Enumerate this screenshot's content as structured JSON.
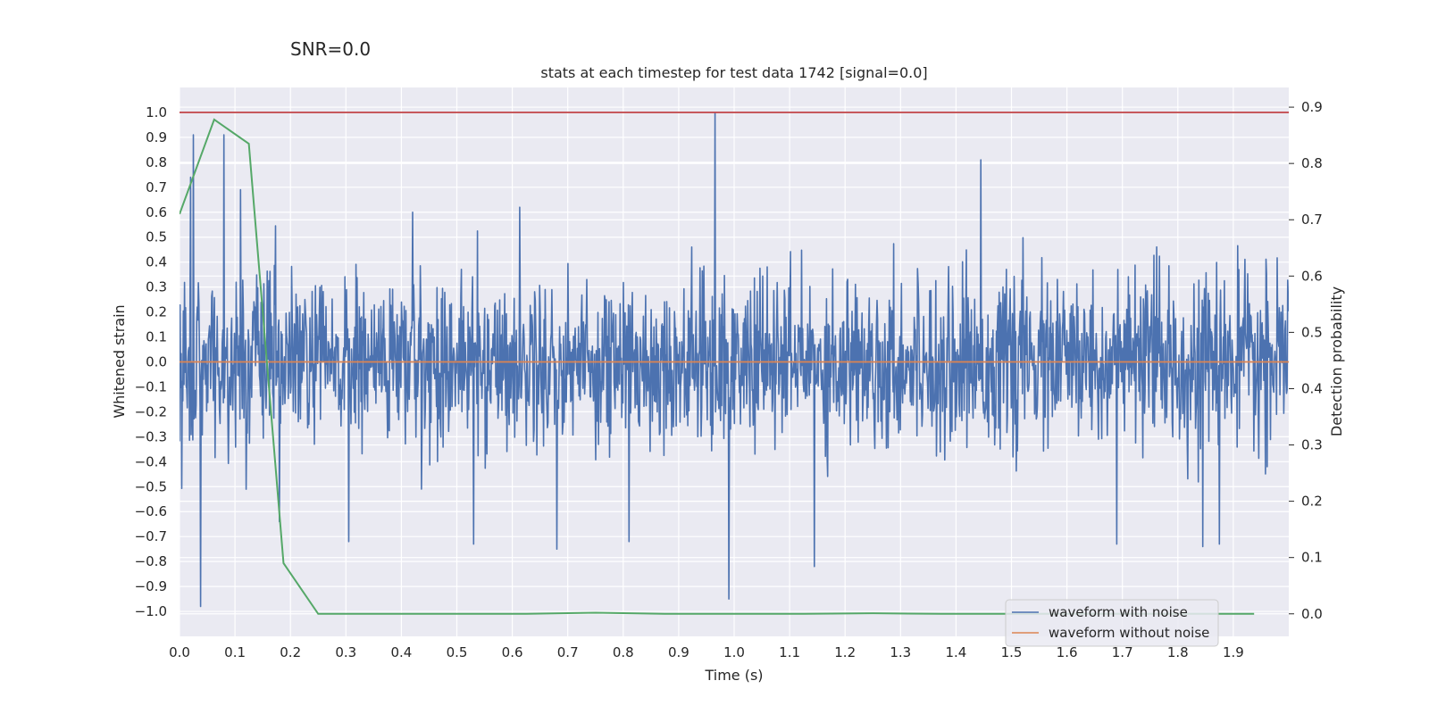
{
  "figure": {
    "suptitle": "SNR=0.0"
  },
  "chart_data": {
    "type": "line",
    "title": "stats at each timestep for test data 1742 [signal=0.0]",
    "xlabel": "Time (s)",
    "ylabel": "Whitened strain",
    "y2label": "Detection probability",
    "xlim": [
      0.0,
      2.0
    ],
    "ylim": [
      -1.1,
      1.1
    ],
    "y2lim": [
      -0.04,
      0.935
    ],
    "x_ticks": [
      "0.0",
      "0.1",
      "0.2",
      "0.3",
      "0.4",
      "0.5",
      "0.6",
      "0.7",
      "0.8",
      "0.9",
      "1.0",
      "1.1",
      "1.2",
      "1.3",
      "1.4",
      "1.5",
      "1.6",
      "1.7",
      "1.8",
      "1.9"
    ],
    "y_ticks": [
      "1.0",
      "0.9",
      "0.8",
      "0.7",
      "0.6",
      "0.5",
      "0.4",
      "0.3",
      "0.2",
      "0.1",
      "0.0",
      "−0.1",
      "−0.2",
      "−0.3",
      "−0.4",
      "−0.5",
      "−0.6",
      "−0.7",
      "−0.8",
      "−0.9",
      "−1.0"
    ],
    "y2_ticks": [
      "0.9",
      "0.8",
      "0.7",
      "0.6",
      "0.5",
      "0.4",
      "0.3",
      "0.2",
      "0.1",
      "0.0"
    ],
    "grid": true,
    "legend_position": "lower-right",
    "threshold_line": {
      "axis": "y",
      "value": 1.0,
      "color": "#c44e52"
    },
    "series": [
      {
        "name": "waveform with noise",
        "axis": "left",
        "color": "#4c72b0",
        "style": "dense-noise",
        "x_range": [
          0.0,
          2.0
        ],
        "sample_count": 2000,
        "typical_amplitude": 0.3,
        "peaks": [
          {
            "x": 0.02,
            "y": 0.74
          },
          {
            "x": 0.025,
            "y": 0.91
          },
          {
            "x": 0.038,
            "y": -0.98
          },
          {
            "x": 0.08,
            "y": 0.91
          },
          {
            "x": 0.11,
            "y": 0.69
          },
          {
            "x": 0.12,
            "y": -0.51
          },
          {
            "x": 0.18,
            "y": -0.64
          },
          {
            "x": 0.305,
            "y": -0.72
          },
          {
            "x": 0.42,
            "y": 0.6
          },
          {
            "x": 0.53,
            "y": -0.73
          },
          {
            "x": 0.68,
            "y": -0.75
          },
          {
            "x": 0.81,
            "y": -0.72
          },
          {
            "x": 0.965,
            "y": 1.0
          },
          {
            "x": 0.99,
            "y": -0.95
          },
          {
            "x": 1.145,
            "y": -0.82
          },
          {
            "x": 1.445,
            "y": 0.81
          },
          {
            "x": 1.69,
            "y": -0.73
          },
          {
            "x": 1.845,
            "y": -0.74
          },
          {
            "x": 1.875,
            "y": -0.73
          }
        ]
      },
      {
        "name": "waveform without noise",
        "axis": "left",
        "color": "#dd8452",
        "x": [
          0.0,
          2.0
        ],
        "y": [
          0.0,
          0.0
        ]
      },
      {
        "name": "detection probability",
        "axis": "right",
        "color": "#55a868",
        "x": [
          0.0,
          0.0625,
          0.125,
          0.1875,
          0.25,
          0.375,
          0.5,
          0.625,
          0.75,
          0.875,
          1.0,
          1.125,
          1.25,
          1.375,
          1.5,
          1.625,
          1.75,
          1.9375
        ],
        "y": [
          0.71,
          0.878,
          0.835,
          0.09,
          0.0,
          0.0,
          0.0,
          0.0,
          0.002,
          0.0,
          0.0,
          0.0,
          0.001,
          0.0,
          0.0,
          0.0,
          0.0,
          0.0
        ]
      }
    ],
    "legend": [
      {
        "label": "waveform with noise",
        "color": "#4c72b0"
      },
      {
        "label": "waveform without noise",
        "color": "#dd8452"
      }
    ]
  }
}
